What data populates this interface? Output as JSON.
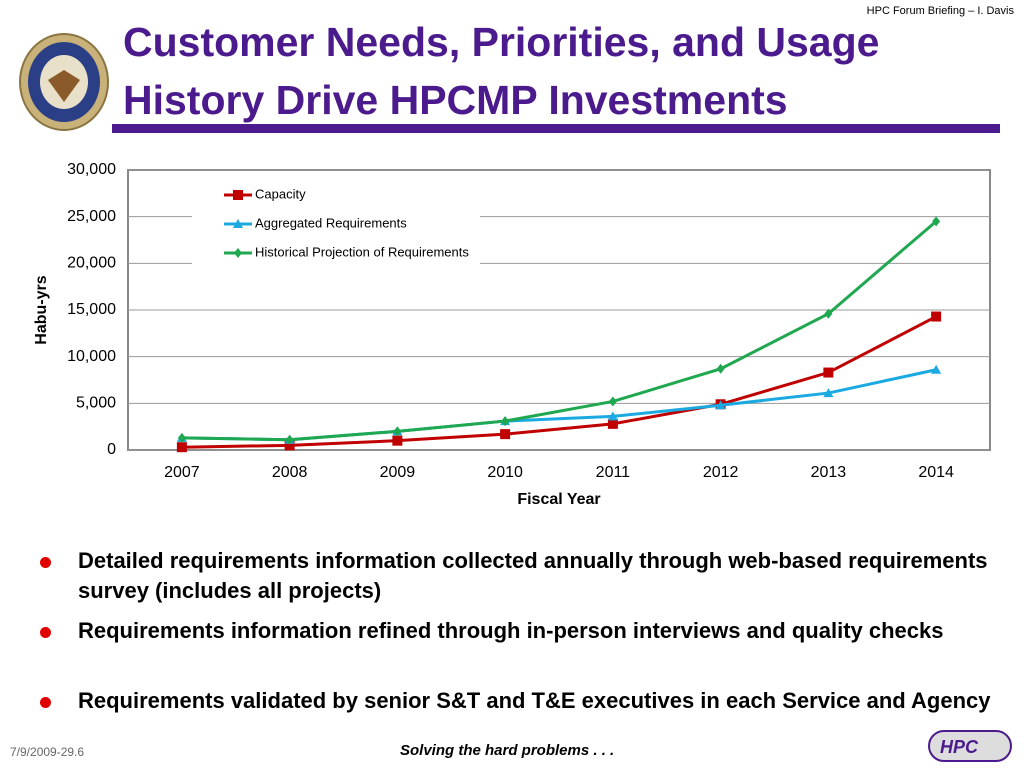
{
  "header": {
    "note": "HPC Forum Briefing – I. Davis",
    "title_lines": [
      "Customer Needs, Priorities, and Usage",
      "History Drive HPCMP Investments"
    ]
  },
  "chart_data": {
    "type": "line",
    "categories": [
      "2007",
      "2008",
      "2009",
      "2010",
      "2011",
      "2012",
      "2013",
      "2014"
    ],
    "series": [
      {
        "name": "Capacity",
        "color": "#c00000",
        "marker": "square",
        "values": [
          300,
          500,
          1000,
          1700,
          2800,
          4900,
          8300,
          14300
        ]
      },
      {
        "name": "Aggregated Requirements",
        "color": "#1aa9e0",
        "marker": "triangle",
        "values": [
          1300,
          1100,
          2000,
          3100,
          3600,
          4800,
          6100,
          8600
        ]
      },
      {
        "name": "Historical Projection of Requirements",
        "color": "#1fa84f",
        "marker": "diamond",
        "values": [
          1300,
          1100,
          2000,
          3100,
          5200,
          8700,
          14600,
          24500
        ]
      }
    ],
    "ylim": [
      0,
      30000
    ],
    "yticks": [
      0,
      {
        "value": 5000,
        "label": "5,000"
      },
      {
        "value": 10000,
        "label": "10,000"
      },
      {
        "value": 15000,
        "label": "15,000"
      },
      {
        "value": 20000,
        "label": "20,000"
      },
      {
        "value": 25000,
        "label": "25,000"
      },
      {
        "value": 30000,
        "label": "30,000"
      }
    ],
    "grid": true,
    "y_label": "Habu-yrs",
    "x_label": "Fiscal Year",
    "legend": "top-left"
  },
  "bullets": [
    "Detailed requirements information collected annually through web-based requirements survey (includes all projects)",
    "Requirements information refined through in-person interviews and quality checks",
    "Requirements validated by senior S&T and T&E executives in each Service and Agency"
  ],
  "footer": {
    "date": "7/9/2009-29.6",
    "tagline": "Solving the hard problems . . .",
    "logo_text": "HPC"
  }
}
